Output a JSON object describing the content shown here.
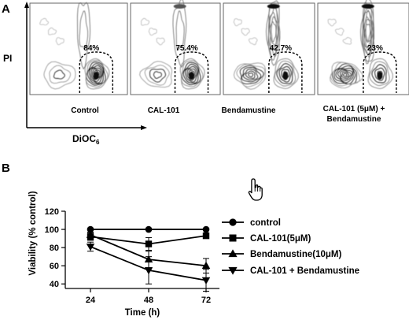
{
  "panel_a": {
    "letter": "A",
    "y_axis_label": "PI",
    "x_axis_label": "DiOC",
    "x_axis_label_sub": "6",
    "plots": [
      {
        "label": "Control",
        "percent": "84%",
        "fraction": 84
      },
      {
        "label": "CAL-101",
        "percent": "75.4%",
        "fraction": 75.4
      },
      {
        "label": "Bendamustine",
        "percent": "42.7%",
        "fraction": 42.7
      },
      {
        "label_line1": "CAL-101 (5μM) +",
        "label_line2": "Bendamustine",
        "percent": "23%",
        "fraction": 23
      }
    ]
  },
  "panel_b": {
    "letter": "B",
    "cursor_icon": "hand-pointer-icon"
  },
  "chart_data": {
    "type": "line",
    "xlabel": "Time (h)",
    "ylabel": "Viability (% control)",
    "x": [
      24,
      48,
      72
    ],
    "xticks": [
      "24",
      "48",
      "72"
    ],
    "yticks": [
      "40",
      "60",
      "80",
      "100",
      "120"
    ],
    "ylim": [
      35,
      120
    ],
    "legend_position": "right",
    "series": [
      {
        "name": "control",
        "marker": "circle",
        "values": [
          100,
          100,
          100
        ],
        "errors": [
          0,
          0,
          0
        ]
      },
      {
        "name": "CAL-101(5μM)",
        "marker": "square",
        "values": [
          92,
          84,
          93
        ],
        "errors": [
          4,
          7,
          0
        ]
      },
      {
        "name": "Bendamustine(10μM)",
        "marker": "triangle-up",
        "values": [
          94,
          67,
          60
        ],
        "errors": [
          3,
          9,
          8
        ]
      },
      {
        "name": "CAL-101 + Bendamustine",
        "marker": "triangle-down",
        "values": [
          81,
          55,
          44
        ],
        "errors": [
          5,
          15,
          12
        ]
      }
    ]
  }
}
